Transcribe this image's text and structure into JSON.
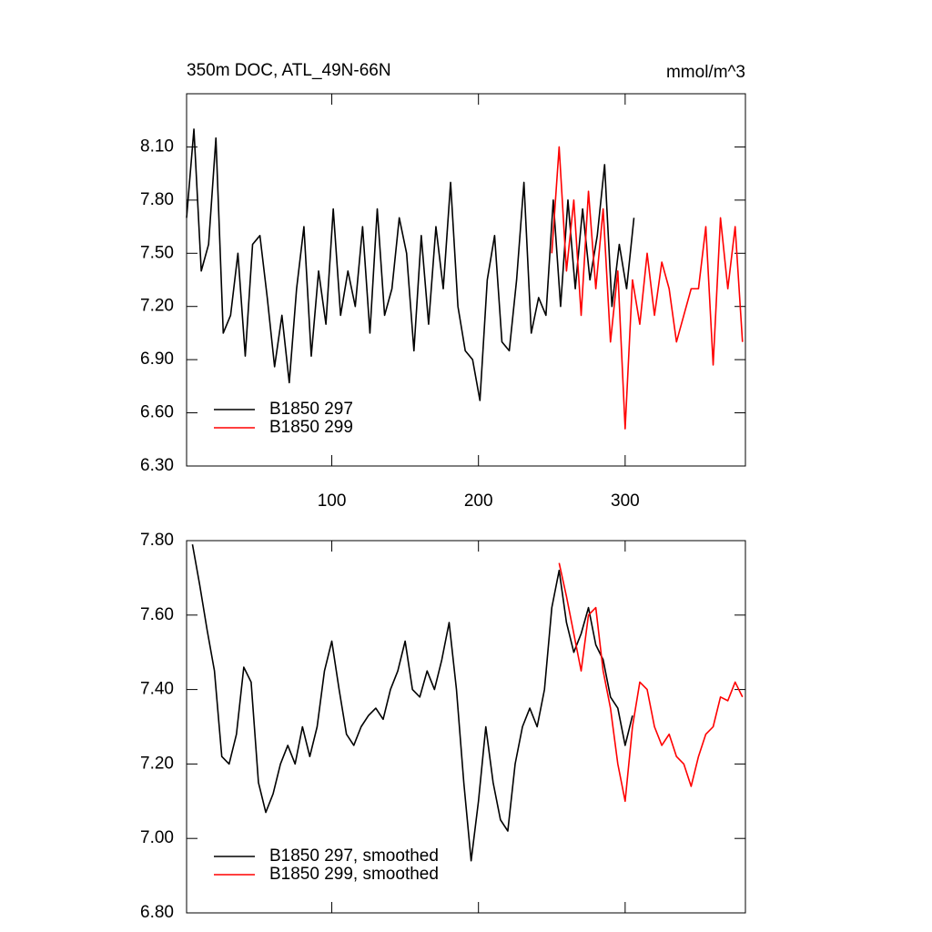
{
  "chart_data": [
    {
      "type": "line",
      "title": "350m DOC, ATL_49N-66N",
      "units": "mmol/m^3",
      "xlim": [
        1,
        382
      ],
      "xticks": [
        100,
        200,
        300
      ],
      "xtick_labels": true,
      "ylim": [
        6.3,
        8.4
      ],
      "yticks": [
        {
          "value": 6.3,
          "label": "6.30"
        },
        {
          "value": 6.6,
          "label": "6.60"
        },
        {
          "value": 6.9,
          "label": "6.90"
        },
        {
          "value": 7.2,
          "label": "7.20"
        },
        {
          "value": 7.5,
          "label": "7.50"
        },
        {
          "value": 7.8,
          "label": "7.80"
        },
        {
          "value": 8.1,
          "label": "8.10"
        }
      ],
      "legend": "lower left",
      "series": [
        {
          "name": "B1850 297",
          "color": "#000000",
          "x": [
            1,
            6,
            11,
            16,
            21,
            26,
            31,
            36,
            41,
            46,
            51,
            56,
            61,
            66,
            71,
            76,
            81,
            86,
            91,
            96,
            101,
            106,
            111,
            116,
            121,
            126,
            131,
            136,
            141,
            146,
            151,
            156,
            161,
            166,
            171,
            176,
            181,
            186,
            191,
            196,
            201,
            206,
            211,
            216,
            221,
            226,
            231,
            236,
            241,
            246,
            251,
            256,
            261,
            266,
            271,
            276,
            281,
            286,
            291,
            296,
            301,
            306
          ],
          "values": [
            7.7,
            8.2,
            7.4,
            7.55,
            8.15,
            7.05,
            7.15,
            7.5,
            6.92,
            7.55,
            7.6,
            7.25,
            6.86,
            7.15,
            6.77,
            7.3,
            7.65,
            6.92,
            7.4,
            7.1,
            7.75,
            7.15,
            7.4,
            7.2,
            7.65,
            7.05,
            7.75,
            7.15,
            7.3,
            7.7,
            7.5,
            6.95,
            7.6,
            7.1,
            7.65,
            7.3,
            7.9,
            7.2,
            6.95,
            6.9,
            6.67,
            7.35,
            7.6,
            7.0,
            6.95,
            7.35,
            7.9,
            7.05,
            7.25,
            7.15,
            7.8,
            7.2,
            7.8,
            7.3,
            7.75,
            7.35,
            7.6,
            8.0,
            7.2,
            7.55,
            7.3,
            7.7
          ]
        },
        {
          "name": "B1850 299",
          "color": "#ff0000",
          "x": [
            250,
            255,
            260,
            265,
            270,
            275,
            280,
            285,
            290,
            295,
            300,
            305,
            310,
            315,
            320,
            325,
            330,
            335,
            340,
            345,
            350,
            355,
            360,
            365,
            370,
            375,
            380
          ],
          "values": [
            7.5,
            8.1,
            7.4,
            7.8,
            7.15,
            7.85,
            7.3,
            7.75,
            7.0,
            7.4,
            6.51,
            7.35,
            7.1,
            7.5,
            7.15,
            7.45,
            7.3,
            7.0,
            7.15,
            7.3,
            7.3,
            7.65,
            6.87,
            7.7,
            7.3,
            7.65,
            7.0
          ]
        }
      ]
    },
    {
      "type": "line",
      "xlim": [
        1,
        382
      ],
      "xticks": [
        100,
        200,
        300
      ],
      "xtick_labels": false,
      "ylim": [
        6.8,
        7.8
      ],
      "yticks": [
        {
          "value": 6.8,
          "label": "6.80"
        },
        {
          "value": 7.0,
          "label": "7.00"
        },
        {
          "value": 7.2,
          "label": "7.20"
        },
        {
          "value": 7.4,
          "label": "7.40"
        },
        {
          "value": 7.6,
          "label": "7.60"
        },
        {
          "value": 7.8,
          "label": "7.80"
        }
      ],
      "legend": "lower left",
      "series": [
        {
          "name": "B1850 297, smoothed",
          "color": "#000000",
          "x": [
            5,
            10,
            15,
            20,
            25,
            30,
            35,
            40,
            45,
            50,
            55,
            60,
            65,
            70,
            75,
            80,
            85,
            90,
            95,
            100,
            105,
            110,
            115,
            120,
            125,
            130,
            135,
            140,
            145,
            150,
            155,
            160,
            165,
            170,
            175,
            180,
            185,
            190,
            195,
            200,
            205,
            210,
            215,
            220,
            225,
            230,
            235,
            240,
            245,
            250,
            255,
            260,
            265,
            270,
            275,
            280,
            285,
            290,
            295,
            300,
            305
          ],
          "values": [
            7.79,
            7.68,
            7.56,
            7.45,
            7.22,
            7.2,
            7.28,
            7.46,
            7.42,
            7.15,
            7.07,
            7.12,
            7.2,
            7.25,
            7.2,
            7.3,
            7.22,
            7.3,
            7.45,
            7.53,
            7.4,
            7.28,
            7.25,
            7.3,
            7.33,
            7.35,
            7.32,
            7.4,
            7.45,
            7.53,
            7.4,
            7.38,
            7.45,
            7.4,
            7.48,
            7.58,
            7.4,
            7.15,
            6.94,
            7.1,
            7.3,
            7.15,
            7.05,
            7.02,
            7.2,
            7.3,
            7.35,
            7.3,
            7.4,
            7.62,
            7.72,
            7.58,
            7.5,
            7.55,
            7.62,
            7.52,
            7.48,
            7.38,
            7.35,
            7.25,
            7.33
          ]
        },
        {
          "name": "B1850 299, smoothed",
          "color": "#ff0000",
          "x": [
            255,
            260,
            265,
            270,
            275,
            280,
            285,
            290,
            295,
            300,
            305,
            310,
            315,
            320,
            325,
            330,
            335,
            340,
            345,
            350,
            355,
            360,
            365,
            370,
            375,
            380
          ],
          "values": [
            7.74,
            7.65,
            7.55,
            7.45,
            7.6,
            7.62,
            7.45,
            7.35,
            7.2,
            7.1,
            7.3,
            7.42,
            7.4,
            7.3,
            7.25,
            7.28,
            7.22,
            7.2,
            7.14,
            7.22,
            7.28,
            7.3,
            7.38,
            7.37,
            7.42,
            7.38
          ]
        }
      ]
    }
  ]
}
